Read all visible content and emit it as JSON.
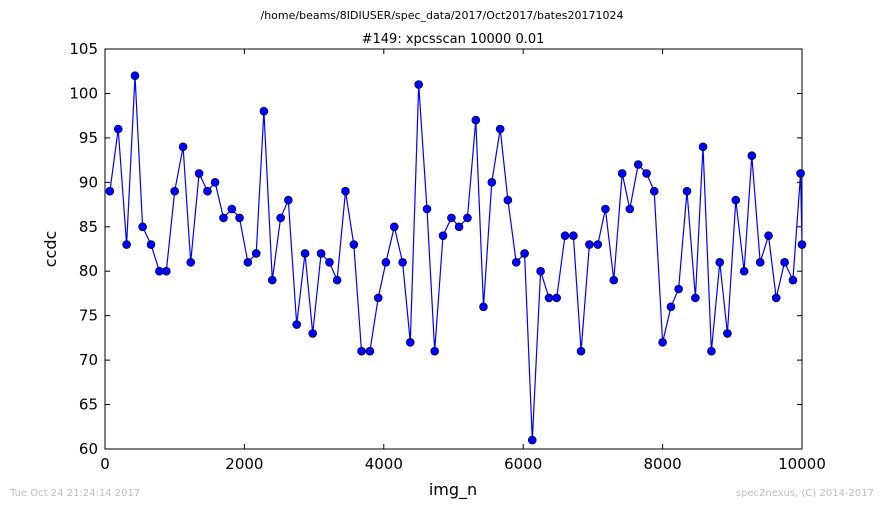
{
  "figure": {
    "suptitle": "/home/beams/8IDIUSER/spec_data/2017/Oct2017/bates20171024",
    "timestamp": "Tue Oct 24 21:24:14 2017",
    "credit": "spec2nexus, (C) 2014-2017"
  },
  "chart_data": {
    "type": "line",
    "title": "#149: xpcsscan 10000 0.01",
    "xlabel": "img_n",
    "ylabel": "ccdc",
    "xlim": [
      0,
      10000
    ],
    "ylim": [
      60,
      105
    ],
    "xticks": [
      0,
      2000,
      4000,
      6000,
      8000,
      10000
    ],
    "yticks": [
      60,
      65,
      70,
      75,
      80,
      85,
      90,
      95,
      100,
      105
    ],
    "grid": false,
    "series": [
      {
        "color": "#0000ff",
        "marker": "circle",
        "x": [
          70,
          190,
          310,
          430,
          540,
          660,
          780,
          880,
          1000,
          1120,
          1230,
          1350,
          1470,
          1580,
          1700,
          1820,
          1930,
          2050,
          2170,
          2280,
          2400,
          2520,
          2630,
          2750,
          2870,
          2980,
          3100,
          3220,
          3330,
          3450,
          3570,
          3680,
          3800,
          3920,
          4030,
          4150,
          4270,
          4380,
          4500,
          4620,
          4730,
          4850,
          4970,
          5080,
          5200,
          5320,
          5430,
          5550,
          5670,
          5780,
          5900,
          6020,
          6130,
          6250,
          6370,
          6480,
          6600,
          6720,
          6830,
          6950,
          7070,
          7180,
          7300,
          7420,
          7530,
          7650,
          7770,
          7880,
          8000,
          8120,
          8230,
          8350,
          8470,
          8580,
          8700,
          8820,
          8930,
          9050,
          9170,
          9280,
          9400,
          9520,
          9630,
          9750,
          9870,
          9980,
          10000
        ],
        "y": [
          89,
          96,
          83,
          102,
          85,
          83,
          80,
          80,
          89,
          94,
          81,
          91,
          89,
          90,
          86,
          87,
          86,
          81,
          82,
          98,
          79,
          86,
          88,
          74,
          82,
          73,
          82,
          81,
          79,
          89,
          83,
          71,
          71,
          77,
          81,
          85,
          81,
          72,
          101,
          87,
          71,
          84,
          86,
          85,
          86,
          97,
          76,
          90,
          96,
          88,
          81,
          82,
          61,
          80,
          77,
          77,
          84,
          84,
          71,
          83,
          83,
          87,
          79,
          91,
          87,
          92,
          91,
          89,
          72,
          76,
          78,
          89,
          77,
          94,
          71,
          81,
          73,
          88,
          80,
          93,
          81,
          84,
          77,
          81,
          79,
          91,
          83
        ]
      }
    ]
  }
}
